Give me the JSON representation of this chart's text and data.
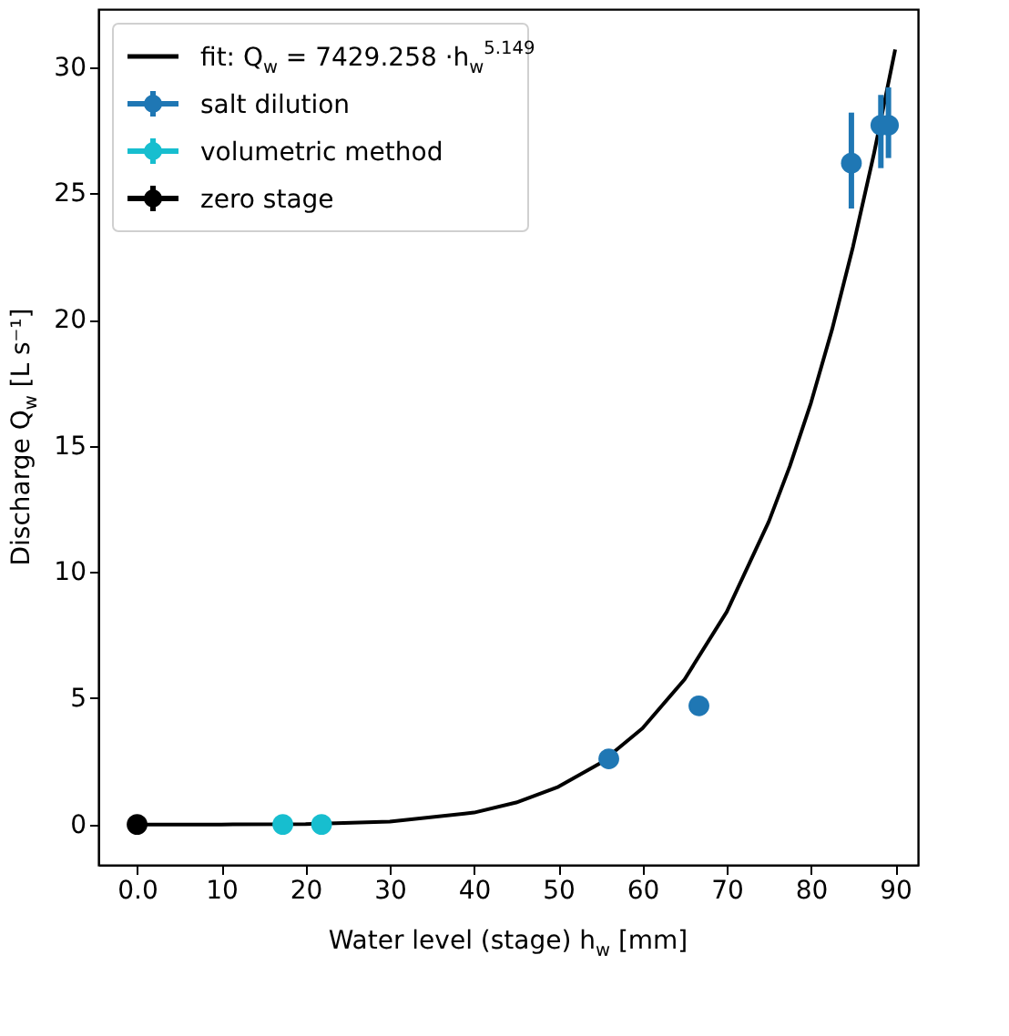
{
  "chart_data": {
    "type": "scatter",
    "xlabel": "Water level (stage) h$_{w}$ [mm]",
    "ylabel": "Discharge Q$_{w}$ [L s⁻¹]",
    "xlim": [
      -4.6,
      92.7
    ],
    "ylim": [
      -1.6,
      32.3
    ],
    "xticks": [
      {
        "value": 0,
        "label": "0.0"
      },
      10,
      20,
      30,
      40,
      50,
      60,
      70,
      80,
      90
    ],
    "yticks": [
      0,
      5,
      10,
      15,
      20,
      25,
      30
    ],
    "grid": false,
    "legend": "top left",
    "marker": "circle",
    "series": [
      {
        "name": "fit: Q$_{w}$ = 7429.258 ·h$_{w}$$^{5.149}$",
        "type": "line",
        "color": "#000000",
        "line_style": "solid",
        "marker": "none",
        "x": [
          0,
          10,
          20,
          30,
          40,
          45,
          50,
          55,
          60,
          65,
          70,
          75,
          77.5,
          80,
          82.5,
          85,
          87.5,
          90
        ],
        "values": [
          0,
          0,
          0.01,
          0.11,
          0.47,
          0.87,
          1.49,
          2.43,
          3.81,
          5.75,
          8.42,
          12.0,
          14.2,
          16.7,
          19.6,
          22.9,
          26.6,
          30.7
        ]
      },
      {
        "name": "salt dilution",
        "color": "#1f77b4",
        "x": [
          56.0,
          66.7,
          84.8,
          88.3,
          89.2
        ],
        "values": [
          2.6,
          4.7,
          26.2,
          27.7,
          27.7
        ],
        "errors": [
          null,
          null,
          [
            24.4,
            28.2
          ],
          [
            26.0,
            28.9
          ],
          [
            26.4,
            29.2
          ]
        ]
      },
      {
        "name": "volumetric method",
        "color": "#17becf",
        "x": [
          17.3,
          21.9
        ],
        "values": [
          0,
          0
        ]
      },
      {
        "name": "zero stage",
        "color": "#000000",
        "x": [
          0
        ],
        "values": [
          0
        ]
      }
    ]
  }
}
